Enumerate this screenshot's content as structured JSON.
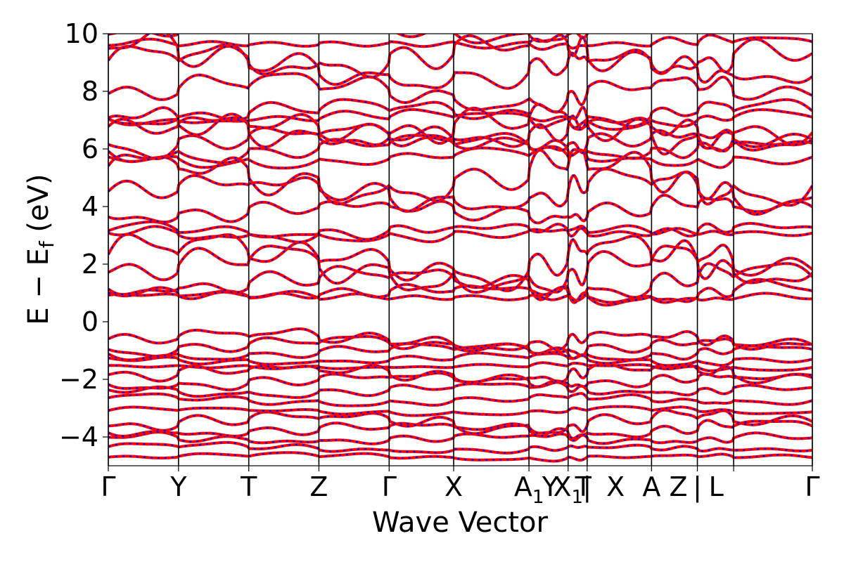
{
  "chart_data": {
    "type": "line",
    "xlabel": "Wave Vector",
    "ylabel": "E − E_f (eV)",
    "ylabel_main": "E − E",
    "ylabel_sub": "f",
    "ylabel_unit": " (eV)",
    "ylim": [
      -5,
      10
    ],
    "yticks": [
      -4,
      -2,
      0,
      2,
      4,
      6,
      8,
      10
    ],
    "ytick_labels": [
      "−4",
      "−2",
      "0",
      "2",
      "4",
      "6",
      "8",
      "10"
    ],
    "x_range": [
      0,
      1
    ],
    "kpoint_positions": [
      0,
      0.0997,
      0.1995,
      0.2991,
      0.3989,
      0.4905,
      0.5975,
      0.6531,
      0.6801,
      0.7716,
      0.8367,
      0.8882,
      1
    ],
    "kpoint_labels": [
      {
        "text": "Γ",
        "pos": 0
      },
      {
        "text": "Y",
        "pos": 0.0997
      },
      {
        "text": "T",
        "pos": 0.1995
      },
      {
        "text": "Z",
        "pos": 0.2991
      },
      {
        "text": "Γ",
        "pos": 0.3989
      },
      {
        "text": "X",
        "pos": 0.4905
      },
      {
        "text": "A",
        "sub": "1",
        "pos": 0.5975
      },
      {
        "text": "Y",
        "pos": 0.6277
      },
      {
        "text": "X",
        "sub": "1",
        "pos": 0.6531
      },
      {
        "text": "T",
        "pos": 0.6745
      },
      {
        "text": "|",
        "pos": 0.6801
      },
      {
        "text": "X",
        "pos": 0.7204
      },
      {
        "text": "A",
        "pos": 0.7716
      },
      {
        "text": "Z",
        "pos": 0.8097
      },
      {
        "text": "|",
        "pos": 0.8367
      },
      {
        "text": "L",
        "pos": 0.8634
      },
      {
        "text": "Γ",
        "pos": 1
      }
    ],
    "band_energies_at_gamma": [
      -4.7,
      -4.4,
      -4.05,
      -3.75,
      -3.5,
      -3.1,
      -2.7,
      -2.35,
      -2.05,
      -1.8,
      -1.55,
      -1.3,
      -1.05,
      -0.85,
      -0.65,
      0.85,
      1.0,
      1.35,
      1.85,
      2.05,
      3.1,
      3.15,
      3.85,
      4.5,
      5.05,
      5.7,
      6.05,
      6.3,
      6.6,
      6.75,
      7.05,
      7.2,
      7.95,
      8.8,
      9.3,
      9.65,
      10.1
    ],
    "series": [
      {
        "color": "#ff0000",
        "style": "solid"
      },
      {
        "color": "#0000ff",
        "style": "dashed"
      }
    ],
    "grid": false
  }
}
